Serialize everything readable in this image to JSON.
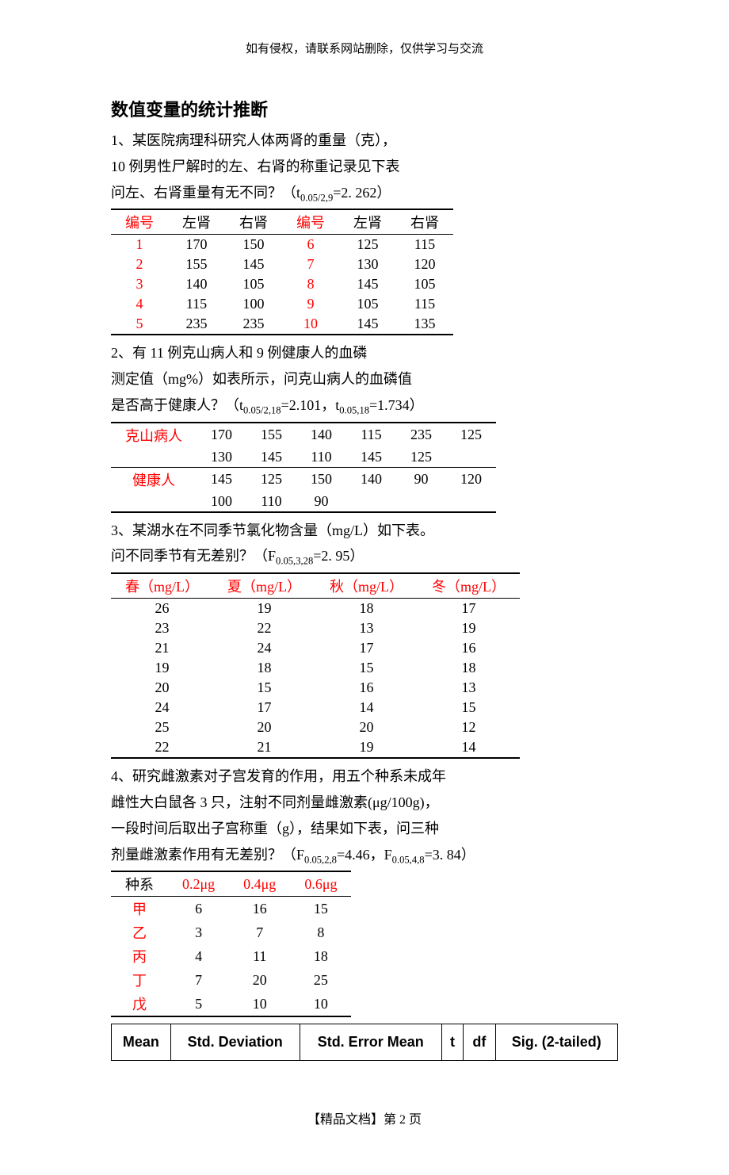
{
  "header_note": "如有侵权，请联系网站删除，仅供学习与交流",
  "title": "数值变量的统计推断",
  "colors": {
    "red": "#ff0000",
    "black": "#000000",
    "background": "#ffffff"
  },
  "font_family": "SimSun",
  "q1": {
    "line1": "1、某医院病理科研究人体两肾的重量（克），",
    "line2": "10 例男性尸解时的左、右肾的称重记录见下表",
    "line3_a": "问左、右肾重量有无不同？（t",
    "line3_sub": "0.05/2,9",
    "line3_b": "=2. 262）",
    "headers": [
      "编号",
      "左肾",
      "右肾",
      "编号",
      "左肾",
      "右肾"
    ],
    "rows": [
      [
        "1",
        "170",
        "150",
        "6",
        "125",
        "115"
      ],
      [
        "2",
        "155",
        "145",
        "7",
        "130",
        "120"
      ],
      [
        "3",
        "140",
        "105",
        "8",
        "145",
        "105"
      ],
      [
        "4",
        "115",
        "100",
        "9",
        "105",
        "115"
      ],
      [
        "5",
        "235",
        "235",
        "10",
        "145",
        "135"
      ]
    ]
  },
  "q2": {
    "line1": "2、有 11 例克山病人和 9 例健康人的血磷",
    "line2": "测定值（mg%）如表所示，问克山病人的血磷值",
    "line3_a": "是否高于健康人？（t",
    "line3_sub1": "0.05/2,18",
    "line3_b": "=2.101，t",
    "line3_sub2": "0.05,18",
    "line3_c": "=1.734）",
    "row1_label": "克山病人",
    "row1_vals": [
      "170",
      "155",
      "140",
      "115",
      "235",
      "125"
    ],
    "row1b_vals": [
      "130",
      "145",
      "110",
      "145",
      "125",
      ""
    ],
    "row2_label": "健康人",
    "row2_vals": [
      "145",
      "125",
      "150",
      "140",
      "90",
      "120"
    ],
    "row2b_vals": [
      "100",
      "110",
      "90",
      "",
      "",
      ""
    ]
  },
  "q3": {
    "line1": "3、某湖水在不同季节氯化物含量（mg/L）如下表。",
    "line2_a": "问不同季节有无差别？（F",
    "line2_sub": "0.05,3,28",
    "line2_b": "=2. 95）",
    "headers": [
      "春（mg/L）",
      "夏（mg/L）",
      "秋（mg/L）",
      "冬（mg/L）"
    ],
    "rows": [
      [
        "26",
        "19",
        "18",
        "17"
      ],
      [
        "23",
        "22",
        "13",
        "19"
      ],
      [
        "21",
        "24",
        "17",
        "16"
      ],
      [
        "19",
        "18",
        "15",
        "18"
      ],
      [
        "20",
        "15",
        "16",
        "13"
      ],
      [
        "24",
        "17",
        "14",
        "15"
      ],
      [
        "25",
        "20",
        "20",
        "12"
      ],
      [
        "22",
        "21",
        "19",
        "14"
      ]
    ]
  },
  "q4": {
    "line1": "4、研究雌激素对子宫发育的作用，用五个种系未成年",
    "line2": "雌性大白鼠各 3 只，注射不同剂量雌激素(μg/100g)，",
    "line3": "一段时间后取出子宫称重（g），结果如下表，问三种",
    "line4_a": "剂量雌激素作用有无差别？（F",
    "line4_sub1": "0.05,2,8",
    "line4_b": "=4.46，F",
    "line4_sub2": "0.05,4,8",
    "line4_c": "=3. 84）",
    "headers": [
      "种系",
      "0.2μg",
      "0.4μg",
      "0.6μg"
    ],
    "rows": [
      [
        "甲",
        "6",
        "16",
        "15"
      ],
      [
        "乙",
        "3",
        "7",
        "8"
      ],
      [
        "丙",
        "4",
        "11",
        "18"
      ],
      [
        "丁",
        "7",
        "20",
        "25"
      ],
      [
        "戊",
        "5",
        "10",
        "10"
      ]
    ]
  },
  "stats_table": {
    "headers": [
      "Mean",
      "Std. Deviation",
      "Std. Error Mean",
      "t",
      "df",
      "Sig. (2-tailed)"
    ]
  },
  "footer": "【精品文档】第 2 页"
}
